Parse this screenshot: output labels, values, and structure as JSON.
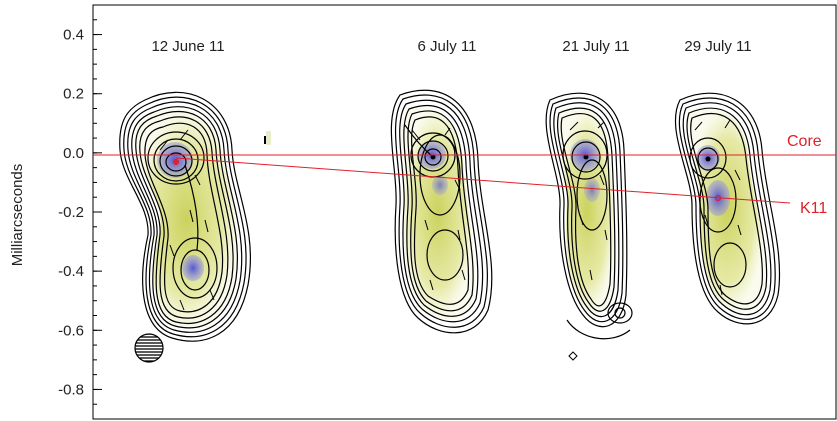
{
  "chart_data": {
    "type": "scatter",
    "title": "",
    "xlabel": "",
    "ylabel": "Milliarcseconds",
    "ylim": [
      -0.9,
      0.5
    ],
    "yticks": [
      "0.4",
      "0.2",
      "0.0",
      "-0.2",
      "-0.4",
      "-0.6",
      "-0.8"
    ],
    "ytick_values": [
      0.4,
      0.2,
      0.0,
      -0.2,
      -0.4,
      -0.6,
      -0.8
    ],
    "epochs": [
      {
        "label": "12 June 11"
      },
      {
        "label": "6 July 11"
      },
      {
        "label": "21 July 11"
      },
      {
        "label": "29 July 11"
      }
    ],
    "lines": [
      {
        "name": "Core",
        "color": "#e0202a"
      },
      {
        "name": "K11",
        "color": "#e0202a"
      }
    ],
    "colors": {
      "contour": "#000000",
      "fill_low": "#d8df7a",
      "fill_high": "#6a6ad8",
      "reference_line": "#e0202a"
    }
  }
}
